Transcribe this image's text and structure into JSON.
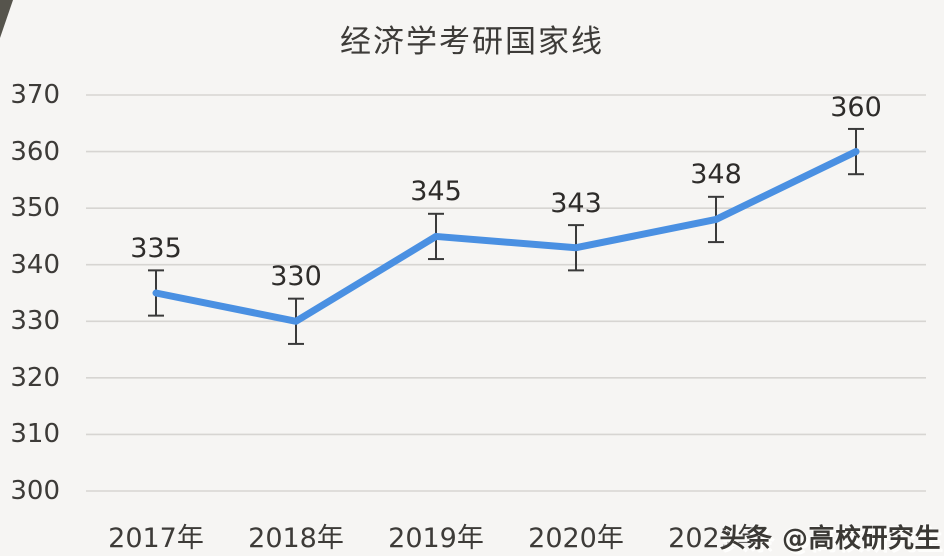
{
  "title": "经济学考研国家线",
  "watermark": "头条 @高校研究生",
  "chart_data": {
    "type": "line",
    "title": "经济学考研国家线",
    "categories": [
      "2017年",
      "2018年",
      "2019年",
      "2020年",
      "2021年",
      ""
    ],
    "series": [
      {
        "values": [
          335,
          330,
          345,
          343,
          348,
          360
        ]
      }
    ],
    "data_labels": [
      "335",
      "330",
      "345",
      "343",
      "348",
      "360"
    ],
    "error_bar_plus_minus": 4,
    "ylim": [
      300,
      370
    ],
    "ytick_step": 10,
    "yticks": [
      "300",
      "310",
      "320",
      "330",
      "340",
      "350",
      "360",
      "370"
    ],
    "grid": "horizontal-only",
    "legend": "none",
    "colors": {
      "line": "#4a90e2",
      "gridline": "#d7d5d2",
      "text": "#3d3b38",
      "data_label_text": "#2e2c2a",
      "error_bar": "#3a3a3a",
      "background": "#f6f5f3"
    }
  }
}
